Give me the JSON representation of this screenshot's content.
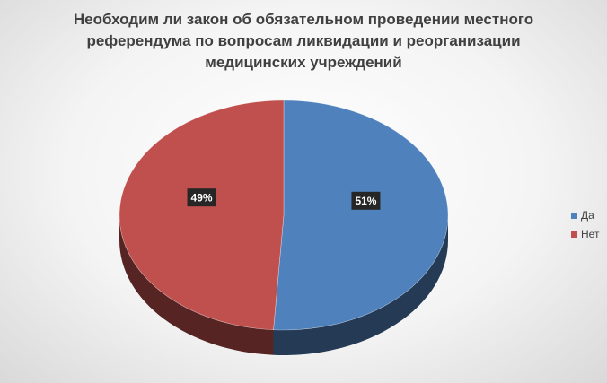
{
  "chart_data": {
    "type": "pie3d",
    "title": "Необходим ли закон об обязательном проведении местного референдума по вопросам ликвидации и реорганизации медицинских учреждений",
    "categories": [
      "Да",
      "Нет"
    ],
    "values": [
      51,
      49
    ],
    "value_labels": [
      "51%",
      "49%"
    ],
    "colors": [
      "#4f81bd",
      "#c0504d"
    ],
    "legend": "right"
  }
}
